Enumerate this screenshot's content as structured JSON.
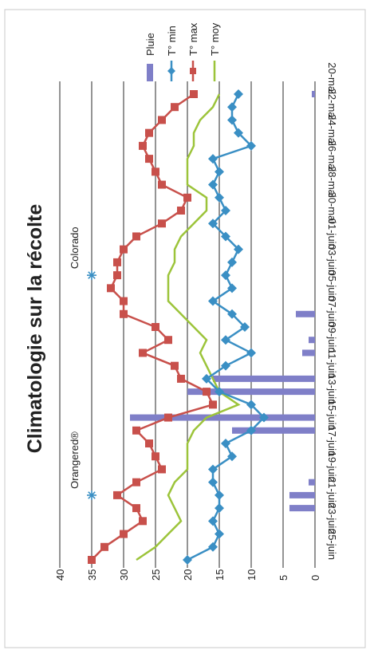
{
  "chart_data": {
    "type": "line",
    "orientation": "rotated-90-clockwise",
    "title": "Climatologie sur la récolte",
    "ylim": [
      0,
      40
    ],
    "y_ticks": [
      0,
      5,
      10,
      15,
      20,
      25,
      30,
      35,
      40
    ],
    "x_tick_labels": [
      "20-mai",
      "22-mai",
      "24-mai",
      "26-mai",
      "28-mai",
      "30-mai",
      "01-juin",
      "03-juin",
      "05-juin",
      "07-juin",
      "09-juin",
      "11-juin",
      "13-juin",
      "15-juin",
      "17-juin",
      "19-juin",
      "21-juin",
      "23-juin",
      "25-juin"
    ],
    "dates": [
      "20-mai",
      "21-mai",
      "22-mai",
      "23-mai",
      "24-mai",
      "25-mai",
      "26-mai",
      "27-mai",
      "28-mai",
      "29-mai",
      "30-mai",
      "31-mai",
      "01-juin",
      "02-juin",
      "03-juin",
      "04-juin",
      "05-juin",
      "06-juin",
      "07-juin",
      "08-juin",
      "09-juin",
      "10-juin",
      "11-juin",
      "12-juin",
      "13-juin",
      "14-juin",
      "15-juin",
      "16-juin",
      "17-juin",
      "18-juin",
      "19-juin",
      "20-juin",
      "21-juin",
      "22-juin",
      "23-juin",
      "24-juin",
      "25-juin"
    ],
    "grid": true,
    "legend_position": "right",
    "series": [
      {
        "name": "Pluie",
        "kind": "bar",
        "color": "#7f7fc8",
        "values": [
          0.5,
          0,
          0,
          0,
          0,
          0,
          0,
          0,
          0,
          0,
          0,
          0,
          0,
          0,
          0,
          0,
          0,
          3,
          0,
          1,
          2,
          0,
          16,
          20,
          0,
          29,
          13,
          0,
          0,
          0,
          1,
          4,
          4,
          0,
          0,
          0,
          0
        ]
      },
      {
        "name": "T° min",
        "kind": "line-diamond",
        "color": "#3a8fc4",
        "values": [
          12,
          13,
          13,
          12,
          10,
          16,
          15,
          16,
          15,
          14,
          16,
          14,
          12,
          13,
          14,
          13,
          16,
          13,
          11,
          14,
          10,
          14,
          17,
          15,
          10,
          8,
          10,
          14,
          13,
          16,
          16,
          15,
          15,
          16,
          15,
          16,
          20
        ]
      },
      {
        "name": "T° max",
        "kind": "line-square",
        "color": "#c8504b",
        "values": [
          19,
          22,
          24,
          26,
          27,
          26,
          25,
          24,
          20,
          21,
          24,
          28,
          30,
          31,
          31,
          32,
          30,
          30,
          25,
          23,
          27,
          22,
          21,
          17,
          16,
          23,
          28,
          26,
          25,
          24,
          28,
          31,
          28,
          27,
          30,
          33,
          35
        ]
      },
      {
        "name": "T° moy",
        "kind": "line",
        "color": "#9cc43a",
        "values": [
          15,
          16,
          18,
          19,
          19,
          20,
          20,
          20,
          17,
          17,
          19,
          21,
          22,
          22,
          23,
          23,
          23,
          21,
          19,
          17,
          18,
          17,
          16,
          15,
          12,
          17,
          19,
          20,
          20,
          20,
          22,
          23,
          22,
          21,
          23,
          25,
          28
        ]
      }
    ],
    "annotations": [
      {
        "label": "Colorado",
        "x": "03-juin",
        "y": 35
      },
      {
        "label": "Orangered®",
        "x": "20-juin",
        "y": 35
      }
    ]
  }
}
